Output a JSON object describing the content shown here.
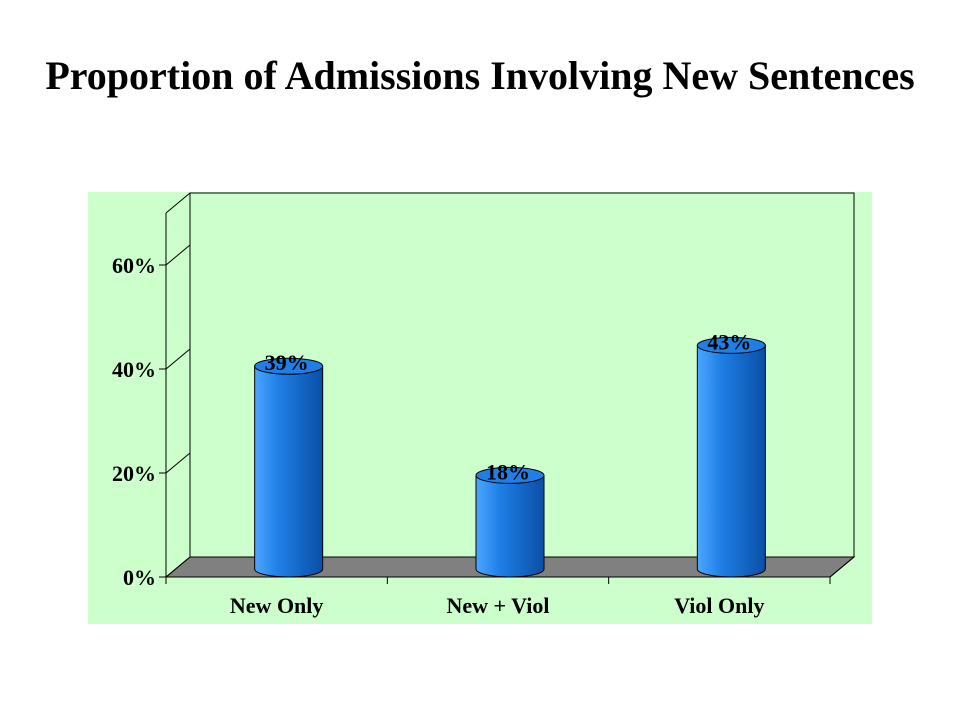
{
  "slide": {
    "title": "Proportion of Admissions Involving New Sentences"
  },
  "colors": {
    "plot_background": "#ccffcc",
    "floor": "#808080",
    "bar_light": "#4da6ff",
    "bar_mid": "#1f7fe6",
    "bar_dark": "#0a4fa6",
    "axis": "#000000"
  },
  "chart_data": {
    "type": "bar",
    "style": "3d-cylinder",
    "title": "",
    "categories": [
      "New Only",
      "New + Viol",
      "Viol Only"
    ],
    "values": [
      39,
      18,
      43
    ],
    "value_labels": [
      "39%",
      "18%",
      "43%"
    ],
    "xlabel": "",
    "ylabel": "",
    "ylim": [
      0,
      70
    ],
    "yticks": [
      0,
      20,
      40,
      60
    ],
    "ytick_labels": [
      "0%",
      "20%",
      "40%",
      "60%"
    ],
    "grid": false,
    "legend": "none"
  }
}
